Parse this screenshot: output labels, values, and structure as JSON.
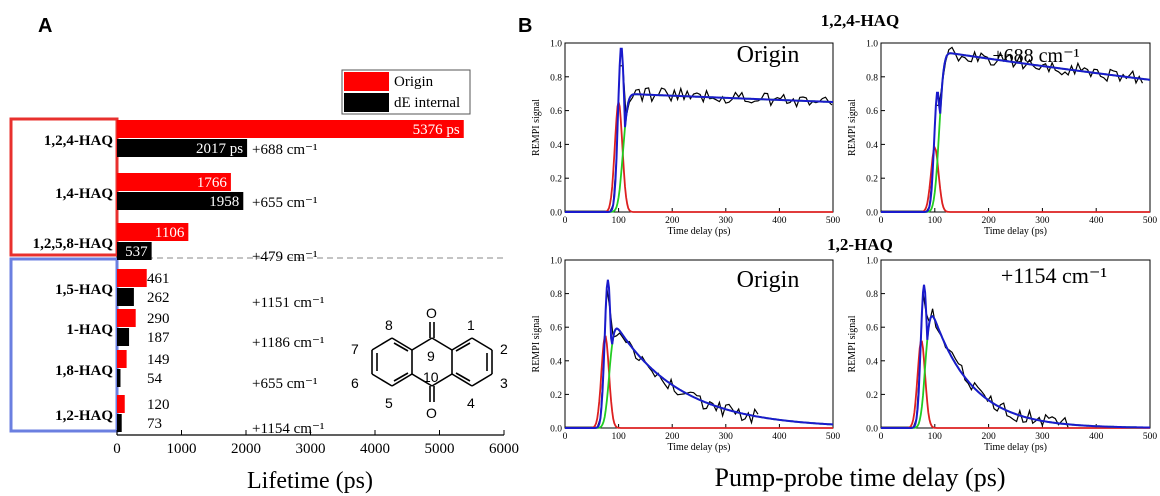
{
  "panel_a": {
    "letter": "A",
    "legend": [
      {
        "label": "Origin",
        "color": "#ff0000"
      },
      {
        "label": "dE internal",
        "color": "#000000"
      }
    ]
  },
  "panel_b": {
    "letter": "B",
    "top_title": "1,2,4-HAQ",
    "mid_title": "1,2-HAQ",
    "common_xlabel": "Pump-probe time delay (ps)"
  },
  "molecule": {
    "name": "anthraquinone",
    "numbers": [
      "1",
      "2",
      "3",
      "4",
      "5",
      "6",
      "7",
      "8",
      "9",
      "10"
    ],
    "oxygen": "O"
  },
  "colors": {
    "origin_bar": "#ff0000",
    "internal_bar": "#000000",
    "group1_box": "#e8302e",
    "group2_box": "#6b7fe0",
    "fit_total": "#1a1acc",
    "fit_rise": "#dd2020",
    "fit_decay": "#22cc22",
    "data_line": "#000000"
  },
  "chart_data": [
    {
      "type": "bar",
      "orientation": "horizontal",
      "xlabel": "Lifetime (ps)",
      "xlim": [
        0,
        6000
      ],
      "xticks": [
        "0",
        "1000",
        "2000",
        "3000",
        "4000",
        "5000",
        "6000"
      ],
      "categories": [
        "1,2,4-HAQ",
        "1,4-HAQ",
        "1,2,5,8-HAQ",
        "1,5-HAQ",
        "1-HAQ",
        "1,8-HAQ",
        "1,2-HAQ"
      ],
      "energy_labels": [
        "+688 cm⁻¹",
        "+655 cm⁻¹",
        "+479 cm⁻¹",
        "+1151 cm⁻¹",
        "+1186 cm⁻¹",
        "+655 cm⁻¹",
        "+1154 cm⁻¹"
      ],
      "series": [
        {
          "name": "Origin",
          "values": [
            5376,
            1766,
            1106,
            461,
            290,
            149,
            120
          ],
          "labels": [
            "5376 ps",
            "1766",
            "1106",
            "461",
            "290",
            "149",
            "120"
          ]
        },
        {
          "name": "dE internal",
          "values": [
            2017,
            1958,
            537,
            262,
            187,
            54,
            73
          ],
          "labels": [
            "2017 ps",
            "1958",
            "537",
            "262",
            "187",
            "54",
            "73"
          ]
        }
      ]
    },
    {
      "type": "line",
      "molecule": "1,2,4-HAQ",
      "annotation": "Origin",
      "xlabel": "Time delay (ps)",
      "ylabel": "REMPI signal",
      "xlim": [
        0,
        500
      ],
      "ylim": [
        0,
        1.0
      ],
      "xticks": [
        "0",
        "100",
        "200",
        "300",
        "400",
        "500"
      ],
      "yticks": [
        "0.0",
        "0.2",
        "0.4",
        "0.6",
        "0.8",
        "1.0"
      ],
      "t0": 100,
      "rise_amp": 0.65,
      "decay_amp": 0.7,
      "decay_tau": 5376,
      "plateau": 0.0,
      "data_end": 500
    },
    {
      "type": "line",
      "molecule": "1,2,4-HAQ",
      "annotation": "+688 cm⁻¹",
      "xlabel": "Time delay (ps)",
      "ylabel": "REMPI signal",
      "xlim": [
        0,
        500
      ],
      "ylim": [
        0,
        1.0
      ],
      "xticks": [
        "0",
        "100",
        "200",
        "300",
        "400",
        "500"
      ],
      "yticks": [
        "0.0",
        "0.2",
        "0.4",
        "0.6",
        "0.8",
        "1.0"
      ],
      "t0": 100,
      "rise_amp": 0.38,
      "decay_amp": 0.95,
      "decay_tau": 2017,
      "plateau": 0.0,
      "data_end": 490
    },
    {
      "type": "line",
      "molecule": "1,2-HAQ",
      "annotation": "Origin",
      "xlabel": "Time delay (ps)",
      "ylabel": "REMPI signal",
      "xlim": [
        0,
        500
      ],
      "ylim": [
        0,
        1.0
      ],
      "xticks": [
        "0",
        "100",
        "200",
        "300",
        "400",
        "500"
      ],
      "yticks": [
        "0.0",
        "0.2",
        "0.4",
        "0.6",
        "0.8",
        "1.0"
      ],
      "t0": 75,
      "rise_amp": 0.55,
      "decay_amp": 0.68,
      "decay_tau": 120,
      "plateau": 0.0,
      "data_end": 365
    },
    {
      "type": "line",
      "molecule": "1,2-HAQ",
      "annotation": "+1154 cm⁻¹",
      "xlabel": "Time delay (ps)",
      "ylabel": "REMPI signal",
      "xlim": [
        0,
        500
      ],
      "ylim": [
        0,
        1.0
      ],
      "xticks": [
        "0",
        "100",
        "200",
        "300",
        "400",
        "500"
      ],
      "yticks": [
        "0.0",
        "0.2",
        "0.4",
        "0.6",
        "0.8",
        "1.0"
      ],
      "t0": 75,
      "rise_amp": 0.52,
      "decay_amp": 0.82,
      "decay_tau": 73,
      "plateau": 0.0,
      "data_end": 350
    }
  ]
}
